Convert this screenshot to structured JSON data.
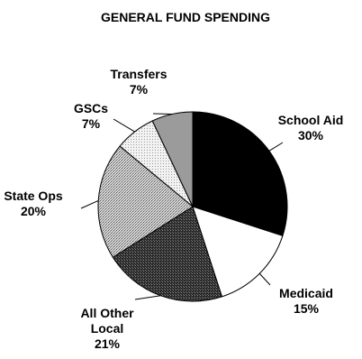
{
  "chart_data": {
    "type": "pie",
    "title": "GENERAL FUND SPENDING",
    "slices": [
      {
        "label": "School Aid",
        "value": 30,
        "value_label": "30%",
        "fill": "solid-black"
      },
      {
        "label": "Medicaid",
        "value": 15,
        "value_label": "15%",
        "fill": "white"
      },
      {
        "label": "All Other Local",
        "value": 21,
        "value_label": "21%",
        "fill": "dark-stipple"
      },
      {
        "label": "State Ops",
        "value": 20,
        "value_label": "20%",
        "fill": "medium-stipple"
      },
      {
        "label": "GSCs",
        "value": 7,
        "value_label": "7%",
        "fill": "light-stipple"
      },
      {
        "label": "Transfers",
        "value": 7,
        "value_label": "7%",
        "fill": "gray"
      }
    ],
    "legend": "none",
    "colors": {
      "outline": "#000000",
      "background": "#ffffff"
    }
  }
}
